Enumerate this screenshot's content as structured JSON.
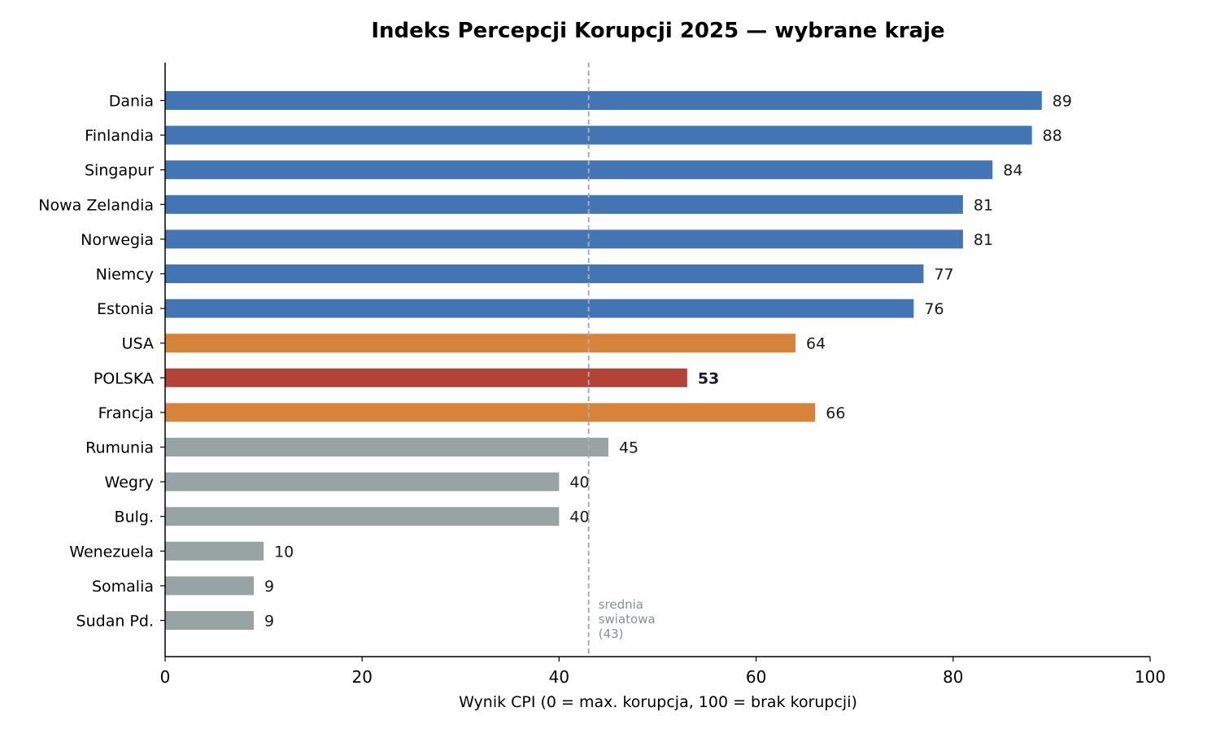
{
  "chart_data": {
    "type": "bar",
    "orientation": "horizontal",
    "title": "Indeks Percepcji Korupcji 2025 — wybrane kraje",
    "xlabel": "Wynik CPI (0 = max. korupcja, 100 = brak korupcji)",
    "xlim": [
      0,
      100
    ],
    "xticks": [
      0,
      20,
      40,
      60,
      80,
      100
    ],
    "grid": false,
    "categories": [
      "Dania",
      "Finlandia",
      "Singapur",
      "Nowa Zelandia",
      "Norwegia",
      "Niemcy",
      "Estonia",
      "USA",
      "POLSKA",
      "Francja",
      "Rumunia",
      "Wegry",
      "Bulg.",
      "Wenezuela",
      "Somalia",
      "Sudan Pd."
    ],
    "values": [
      89,
      88,
      84,
      81,
      81,
      77,
      76,
      64,
      53,
      66,
      45,
      40,
      40,
      10,
      9,
      9
    ],
    "bar_colors": [
      "#4374b3",
      "#4374b3",
      "#4374b3",
      "#4374b3",
      "#4374b3",
      "#4374b3",
      "#4374b3",
      "#d8833a",
      "#b34334",
      "#d8833a",
      "#98a3a4",
      "#98a3a4",
      "#98a3a4",
      "#98a3a4",
      "#98a3a4",
      "#98a3a4"
    ],
    "highlight": "POLSKA",
    "reference_line": {
      "value": 43,
      "label": [
        "srednia",
        "swiatowa",
        "(43)"
      ],
      "color": "#a8adb2",
      "style": "dashed"
    }
  }
}
